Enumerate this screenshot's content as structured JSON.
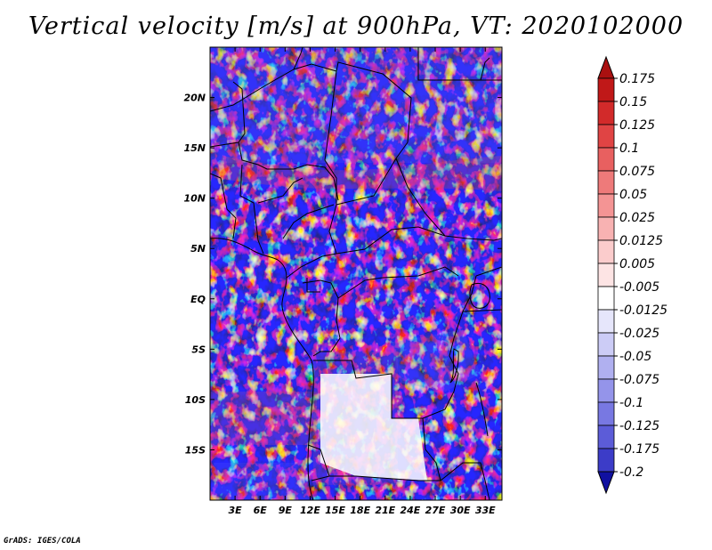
{
  "title": "Vertical velocity [m/s] at 900hPa, VT: 2020102000",
  "credit": "GrADS: IGES/COLA",
  "map": {
    "variable": "Vertical velocity",
    "units": "m/s",
    "level": "900hPa",
    "valid_time": "2020102000",
    "lon_range": [
      0,
      35
    ],
    "lat_range": [
      -20,
      25
    ],
    "lat_ticks": [
      {
        "value": 20,
        "label": "20N"
      },
      {
        "value": 15,
        "label": "15N"
      },
      {
        "value": 10,
        "label": "10N"
      },
      {
        "value": 5,
        "label": "5N"
      },
      {
        "value": 0,
        "label": "EQ"
      },
      {
        "value": -5,
        "label": "5S"
      },
      {
        "value": -10,
        "label": "10S"
      },
      {
        "value": -15,
        "label": "15S"
      }
    ],
    "lon_ticks": [
      {
        "value": 3,
        "label": "3E"
      },
      {
        "value": 6,
        "label": "6E"
      },
      {
        "value": 9,
        "label": "9E"
      },
      {
        "value": 12,
        "label": "12E"
      },
      {
        "value": 15,
        "label": "15E"
      },
      {
        "value": 18,
        "label": "18E"
      },
      {
        "value": 21,
        "label": "21E"
      },
      {
        "value": 24,
        "label": "24E"
      },
      {
        "value": 27,
        "label": "27E"
      },
      {
        "value": 30,
        "label": "30E"
      },
      {
        "value": 33,
        "label": "33E"
      }
    ]
  },
  "colorbar": {
    "levels": [
      {
        "label": "0.175",
        "color": "#c01818"
      },
      {
        "label": "0.15",
        "color": "#d22a2a"
      },
      {
        "label": "0.125",
        "color": "#e04444"
      },
      {
        "label": "0.1",
        "color": "#e86060"
      },
      {
        "label": "0.075",
        "color": "#ee7a7a"
      },
      {
        "label": "0.05",
        "color": "#f49494"
      },
      {
        "label": "0.025",
        "color": "#f8b2b2"
      },
      {
        "label": "0.0125",
        "color": "#fbcccc"
      },
      {
        "label": "0.005",
        "color": "#fde4e4"
      },
      {
        "label": "-0.005",
        "color": "#ffffff"
      },
      {
        "label": "-0.0125",
        "color": "#e6e6fb"
      },
      {
        "label": "-0.025",
        "color": "#ccccf6"
      },
      {
        "label": "-0.05",
        "color": "#b0b0f0"
      },
      {
        "label": "-0.075",
        "color": "#9494ea"
      },
      {
        "label": "-0.1",
        "color": "#7878e2"
      },
      {
        "label": "-0.125",
        "color": "#5c5cd8"
      },
      {
        "label": "-0.175",
        "color": "#3c3cc8"
      },
      {
        "label": "-0.2",
        "color": "#2020b0"
      }
    ],
    "top_arrow_color": "#aa1010",
    "bottom_arrow_color": "#1010a0"
  }
}
